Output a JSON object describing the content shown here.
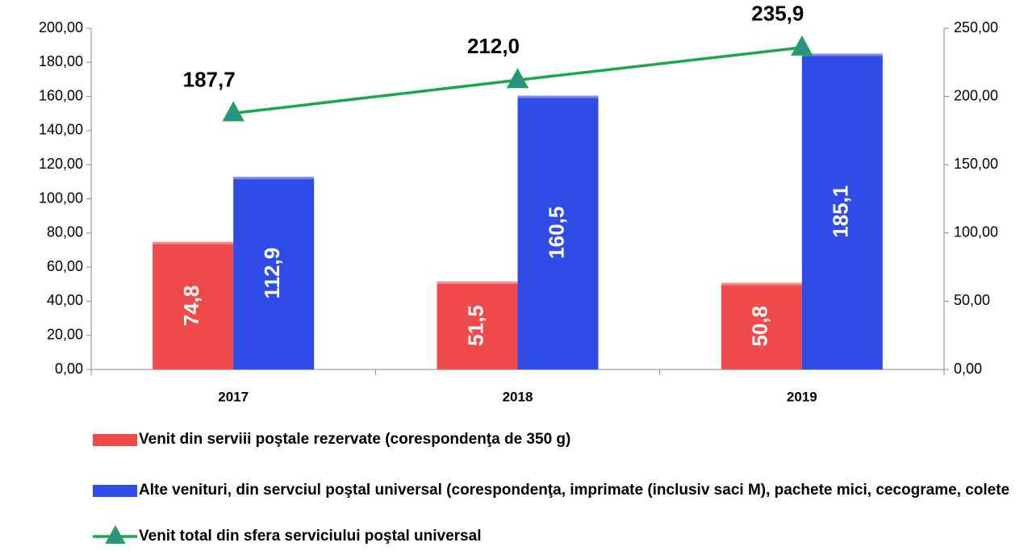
{
  "chart_data": {
    "type": "bar",
    "categories": [
      "2017",
      "2018",
      "2019"
    ],
    "series": [
      {
        "name": "Venit din serviii poştale rezervate (corespondenţa de 350 g)",
        "type": "bar",
        "color": "#f04a4a",
        "values": [
          74.8,
          51.5,
          50.8
        ],
        "value_labels": [
          "74,8",
          "51,5",
          "50,8"
        ]
      },
      {
        "name": "Alte venituri, din servciul poştal universal (corespondenţa, imprimate (inclusiv saci M), pachete mici, cecograme, colete",
        "type": "bar",
        "color": "#2f4de6",
        "values": [
          112.9,
          160.5,
          185.1
        ],
        "value_labels": [
          "112,9",
          "160,5",
          "185,1"
        ]
      },
      {
        "name": "Venit total din sfera serviciului poştal universal",
        "type": "line",
        "axis": "y2",
        "color": "#1aa84a",
        "marker_color": "#2e8f8a",
        "values": [
          187.7,
          212.0,
          235.9
        ],
        "value_labels": [
          "187,7",
          "212,0",
          "235,9"
        ]
      }
    ],
    "ylim": [
      0,
      200
    ],
    "yticks": [
      {
        "value": 0,
        "label": "0,00"
      },
      {
        "value": 20,
        "label": "20,00"
      },
      {
        "value": 40,
        "label": "40,00"
      },
      {
        "value": 60,
        "label": "60,00"
      },
      {
        "value": 80,
        "label": "80,00"
      },
      {
        "value": 100,
        "label": "100,00"
      },
      {
        "value": 120,
        "label": "120,00"
      },
      {
        "value": 140,
        "label": "140,00"
      },
      {
        "value": 160,
        "label": "160,00"
      },
      {
        "value": 180,
        "label": "180,00"
      },
      {
        "value": 200,
        "label": "200,00"
      }
    ],
    "y2lim": [
      0,
      250
    ],
    "y2ticks": [
      {
        "value": 0,
        "label": "0,00"
      },
      {
        "value": 50,
        "label": "50,00"
      },
      {
        "value": 100,
        "label": "100,00"
      },
      {
        "value": 150,
        "label": "150,00"
      },
      {
        "value": 200,
        "label": "200,00"
      },
      {
        "value": 250,
        "label": "250,00"
      }
    ],
    "grid": false,
    "legend": "bottom"
  }
}
